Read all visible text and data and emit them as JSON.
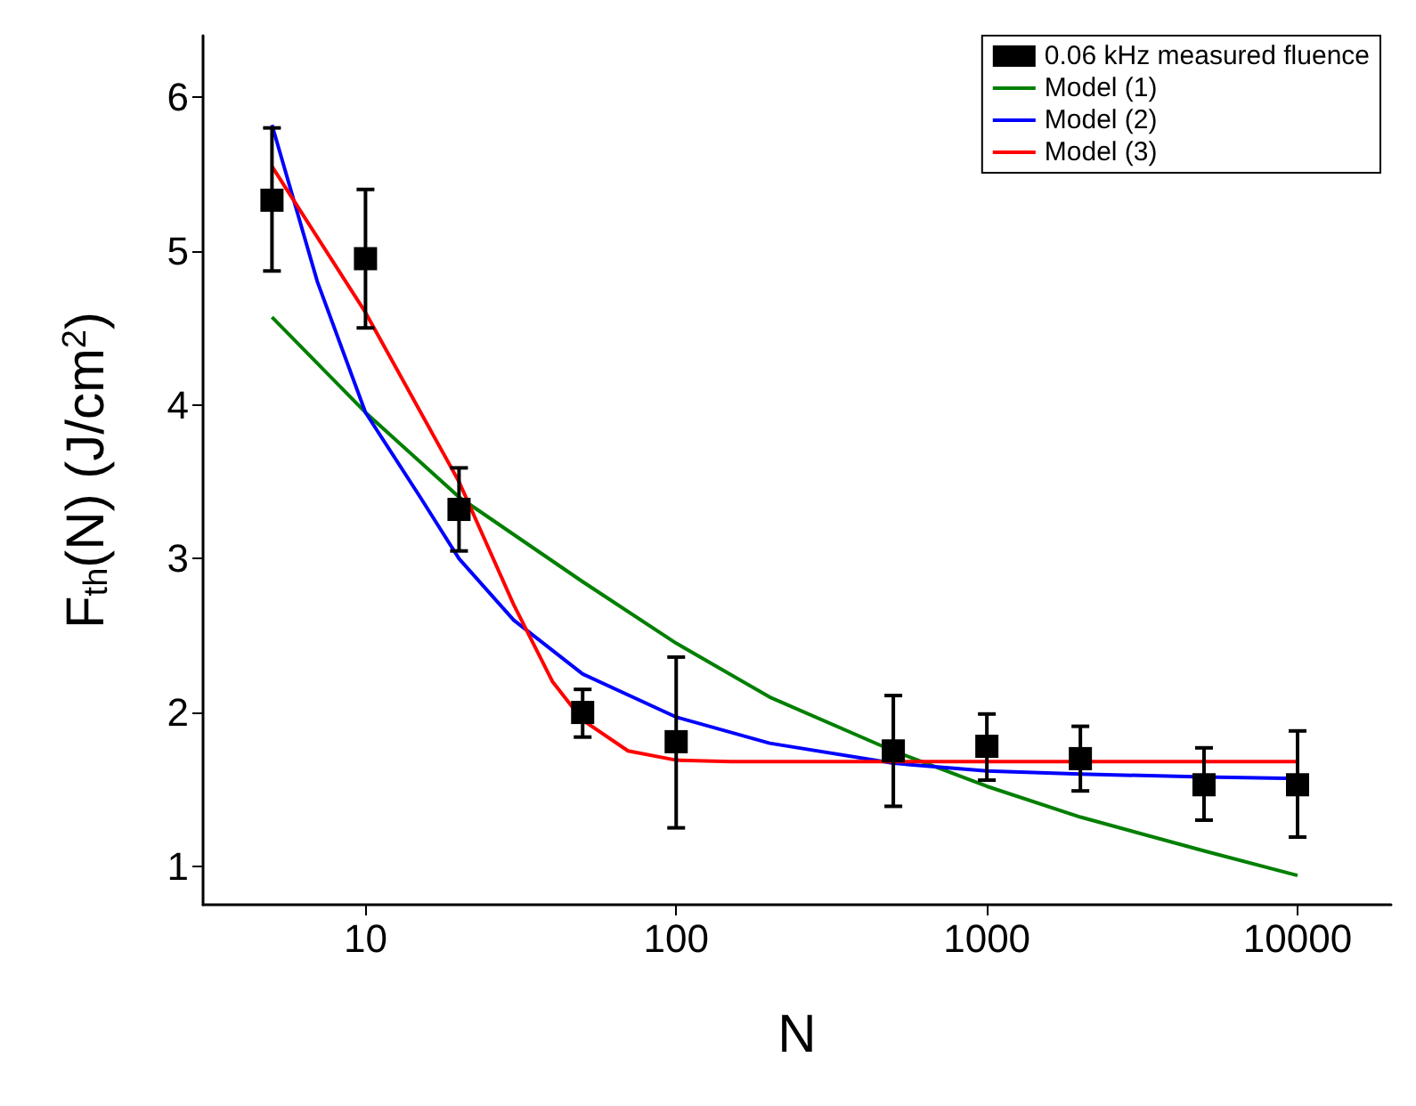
{
  "chart_data": {
    "type": "scatter",
    "xlabel": "N",
    "ylabel": "F$_{th}$(N) (J/cm$^{2}$)",
    "log": "x",
    "grid": false,
    "legend": "top right",
    "xlim": [
      3,
      20000
    ],
    "xticks": [
      10,
      100,
      1000,
      10000
    ],
    "ylim": [
      0.75,
      6.4
    ],
    "yticks": [
      1,
      2,
      3,
      4,
      5,
      6
    ],
    "series": [
      {
        "name": "0.06 kHz measured fluence",
        "marker": "square",
        "color": "#000000",
        "x": [
          5,
          10,
          20,
          50,
          100,
          500,
          1000,
          2000,
          5000,
          10000
        ],
        "values": [
          5.33,
          4.95,
          3.32,
          2.0,
          1.81,
          1.75,
          1.78,
          1.7,
          1.53,
          1.53
        ],
        "errors": [
          [
            4.87,
            5.8
          ],
          [
            4.5,
            5.4
          ],
          [
            3.05,
            3.59
          ],
          [
            1.84,
            2.15
          ],
          [
            1.25,
            2.36
          ],
          [
            1.39,
            2.11
          ],
          [
            1.56,
            1.99
          ],
          [
            1.49,
            1.91
          ],
          [
            1.3,
            1.77
          ],
          [
            1.19,
            1.88
          ]
        ]
      },
      {
        "name": "Model (1)",
        "type": "line",
        "marker": "none",
        "color": "#007f00",
        "x": [
          5,
          10,
          20,
          50,
          100,
          200,
          500,
          1000,
          2000,
          5000,
          10000
        ],
        "values": [
          4.57,
          3.95,
          3.4,
          2.85,
          2.45,
          2.1,
          1.75,
          1.52,
          1.32,
          1.1,
          0.94
        ]
      },
      {
        "name": "Model (2)",
        "type": "line",
        "marker": "none",
        "color": "#0000ff",
        "x": [
          5,
          7,
          10,
          15,
          20,
          30,
          50,
          100,
          200,
          500,
          1000,
          2000,
          5000,
          10000
        ],
        "values": [
          5.82,
          4.8,
          3.95,
          3.4,
          3.0,
          2.6,
          2.25,
          1.97,
          1.8,
          1.67,
          1.62,
          1.6,
          1.58,
          1.57
        ]
      },
      {
        "name": "Model (3)",
        "type": "line",
        "marker": "none",
        "color": "#ff0000",
        "x": [
          5,
          10,
          20,
          30,
          40,
          50,
          70,
          100,
          150,
          1000,
          10000
        ],
        "values": [
          5.55,
          4.6,
          3.5,
          2.7,
          2.2,
          1.95,
          1.75,
          1.69,
          1.68,
          1.68,
          1.68
        ]
      }
    ]
  }
}
